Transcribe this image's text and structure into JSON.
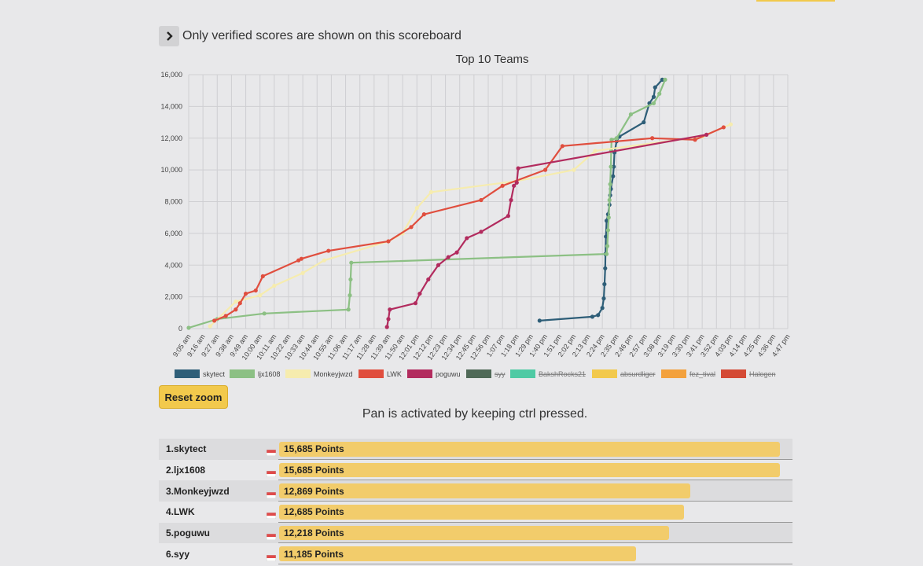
{
  "notice": {
    "text": "Only verified scores are shown on this scoreboard",
    "toggle_icon": "chevron-right-icon"
  },
  "chart_data": {
    "type": "line",
    "title": "Top 10 Teams",
    "xlabel": "",
    "ylabel": "",
    "ylim": [
      0,
      16000
    ],
    "ytick_labels": [
      "0",
      "2,000",
      "4,000",
      "6,000",
      "8,000",
      "10,000",
      "12,000",
      "14,000",
      "16,000"
    ],
    "x_categories": [
      "9:05 am",
      "9:16 am",
      "9:27 am",
      "9:38 am",
      "9:49 am",
      "10:00 am",
      "10:11 am",
      "10:22 am",
      "10:33 am",
      "10:44 am",
      "10:55 am",
      "11:06 am",
      "11:17 am",
      "11:28 am",
      "11:39 am",
      "11:50 am",
      "12:01 pm",
      "12:12 pm",
      "12:23 pm",
      "12:34 pm",
      "12:45 pm",
      "12:56 pm",
      "1:07 pm",
      "1:18 pm",
      "1:29 pm",
      "1:40 pm",
      "1:51 pm",
      "2:02 pm",
      "2:13 pm",
      "2:24 pm",
      "2:35 pm",
      "2:46 pm",
      "2:57 pm",
      "3:08 pm",
      "3:19 pm",
      "3:30 pm",
      "3:41 pm",
      "3:52 pm",
      "4:03 pm",
      "4:14 pm",
      "4:25 pm",
      "4:36 pm",
      "4:47 pm"
    ],
    "grid": true,
    "legend_position": "bottom",
    "series": [
      {
        "name": "skytect",
        "color": "#2e5e78",
        "hidden": false,
        "points": [
          [
            24.6,
            500
          ],
          [
            28.3,
            750
          ],
          [
            28.7,
            850
          ],
          [
            29.0,
            1300
          ],
          [
            29.1,
            1900
          ],
          [
            29.15,
            2800
          ],
          [
            29.2,
            3800
          ],
          [
            29.22,
            4700
          ],
          [
            29.25,
            5800
          ],
          [
            29.3,
            6800
          ],
          [
            29.4,
            7200
          ],
          [
            29.5,
            7800
          ],
          [
            29.55,
            8400
          ],
          [
            29.6,
            8800
          ],
          [
            29.75,
            9600
          ],
          [
            29.8,
            10200
          ],
          [
            29.85,
            11100
          ],
          [
            30.0,
            11800
          ],
          [
            30.2,
            12100
          ],
          [
            31.9,
            13000
          ],
          [
            32.3,
            14200
          ],
          [
            32.6,
            14600
          ],
          [
            32.7,
            15200
          ],
          [
            33.2,
            15685
          ]
        ]
      },
      {
        "name": "ljx1608",
        "color": "#8cc084",
        "hidden": false,
        "points": [
          [
            0,
            50
          ],
          [
            2.0,
            600
          ],
          [
            5.3,
            950
          ],
          [
            11.2,
            1200
          ],
          [
            11.3,
            2100
          ],
          [
            11.35,
            3100
          ],
          [
            11.4,
            4150
          ],
          [
            29.3,
            4700
          ],
          [
            29.35,
            5200
          ],
          [
            29.4,
            6200
          ],
          [
            29.45,
            7000
          ],
          [
            29.5,
            8100
          ],
          [
            29.55,
            9100
          ],
          [
            29.6,
            10200
          ],
          [
            29.62,
            11200
          ],
          [
            29.65,
            11900
          ],
          [
            30.0,
            12000
          ],
          [
            31.0,
            13500
          ],
          [
            32.6,
            14200
          ],
          [
            33.0,
            14800
          ],
          [
            33.4,
            15685
          ]
        ]
      },
      {
        "name": "Monkeyjwzd",
        "color": "#f6ecae",
        "hidden": false,
        "points": [
          [
            1.5,
            150
          ],
          [
            3.3,
            1700
          ],
          [
            5.0,
            2100
          ],
          [
            6.0,
            2700
          ],
          [
            8.0,
            3500
          ],
          [
            9.5,
            4300
          ],
          [
            14.0,
            5500
          ],
          [
            15.0,
            6000
          ],
          [
            16.0,
            7600
          ],
          [
            17.0,
            8600
          ],
          [
            23.0,
            9300
          ],
          [
            27.0,
            10000
          ],
          [
            28.5,
            11200
          ],
          [
            36.0,
            12100
          ],
          [
            38.0,
            12869
          ]
        ]
      },
      {
        "name": "LWK",
        "color": "#e04e3e",
        "hidden": false,
        "points": [
          [
            1.8,
            500
          ],
          [
            2.6,
            800
          ],
          [
            3.3,
            1200
          ],
          [
            3.6,
            1600
          ],
          [
            4.0,
            2200
          ],
          [
            4.7,
            2400
          ],
          [
            5.2,
            3300
          ],
          [
            7.7,
            4300
          ],
          [
            7.9,
            4400
          ],
          [
            9.8,
            4900
          ],
          [
            14.0,
            5500
          ],
          [
            15.6,
            6400
          ],
          [
            16.5,
            7200
          ],
          [
            20.5,
            8100
          ],
          [
            22.0,
            9000
          ],
          [
            25.0,
            10000
          ],
          [
            26.2,
            11500
          ],
          [
            32.5,
            12000
          ],
          [
            35.5,
            11900
          ],
          [
            37.5,
            12685
          ]
        ]
      },
      {
        "name": "poguwu",
        "color": "#b22b5e",
        "hidden": false,
        "points": [
          [
            13.9,
            100
          ],
          [
            14.0,
            600
          ],
          [
            14.1,
            1200
          ],
          [
            15.9,
            1600
          ],
          [
            16.2,
            2200
          ],
          [
            16.8,
            3100
          ],
          [
            17.5,
            4000
          ],
          [
            18.2,
            4500
          ],
          [
            18.8,
            4800
          ],
          [
            19.5,
            5700
          ],
          [
            20.5,
            6100
          ],
          [
            22.4,
            7100
          ],
          [
            22.6,
            8100
          ],
          [
            22.8,
            9000
          ],
          [
            23.0,
            9200
          ],
          [
            23.1,
            10100
          ],
          [
            36.3,
            12218
          ]
        ]
      },
      {
        "name": "syy",
        "color": "#4f6957",
        "hidden": true,
        "points": []
      },
      {
        "name": "BakshRocks21",
        "color": "#4fcaa4",
        "hidden": true,
        "points": []
      },
      {
        "name": "absurdliger",
        "color": "#f2c94c",
        "hidden": true,
        "points": []
      },
      {
        "name": "fez_tival",
        "color": "#f3a13d",
        "hidden": true,
        "points": []
      },
      {
        "name": "Halogen",
        "color": "#d44a35",
        "hidden": true,
        "points": []
      }
    ]
  },
  "reset_zoom_label": "Reset zoom",
  "pan_note": "Pan is activated by keeping ctrl pressed.",
  "scoreboard": {
    "max_points": 15685,
    "rows": [
      {
        "rank_name": "1.skytect",
        "points_label": "15,685 Points",
        "points": 15685
      },
      {
        "rank_name": "2.ljx1608",
        "points_label": "15,685 Points",
        "points": 15685
      },
      {
        "rank_name": "3.Monkeyjwzd",
        "points_label": "12,869 Points",
        "points": 12869
      },
      {
        "rank_name": "4.LWK",
        "points_label": "12,685 Points",
        "points": 12685
      },
      {
        "rank_name": "5.poguwu",
        "points_label": "12,218 Points",
        "points": 12218
      },
      {
        "rank_name": "6.syy",
        "points_label": "11,185 Points",
        "points": 11185
      }
    ]
  }
}
